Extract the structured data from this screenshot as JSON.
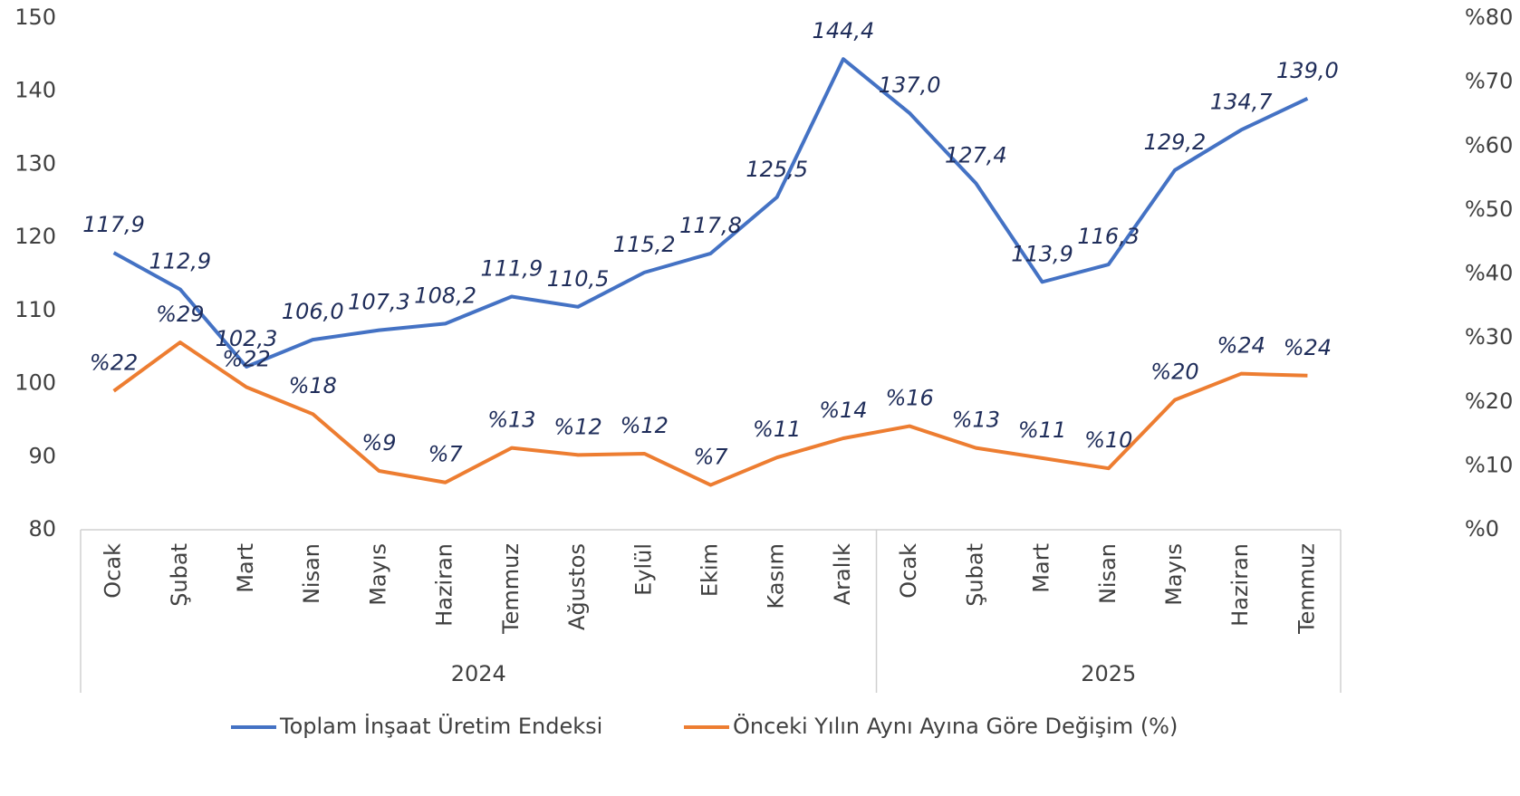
{
  "chart_data": {
    "type": "line",
    "categories": [
      "Ocak",
      "Şubat",
      "Mart",
      "Nisan",
      "Mayıs",
      "Haziran",
      "Temmuz",
      "Ağustos",
      "Eylül",
      "Ekim",
      "Kasım",
      "Aralık",
      "Ocak",
      "Şubat",
      "Mart",
      "Nisan",
      "Mayıs",
      "Haziran",
      "Temmuz"
    ],
    "groups": [
      {
        "label": "2024",
        "span": 12
      },
      {
        "label": "2025",
        "span": 7
      }
    ],
    "series": [
      {
        "name": "Toplam İnşaat Üretim Endeksi",
        "color": "#4472c4",
        "axis": "y",
        "values": [
          117.9,
          112.9,
          102.3,
          106.0,
          107.3,
          108.2,
          111.9,
          110.5,
          115.2,
          117.8,
          125.5,
          144.4,
          137.0,
          127.4,
          113.9,
          116.3,
          129.2,
          134.7,
          139.0
        ],
        "value_labels": [
          "117,9",
          "112,9",
          "102,3",
          "106,0",
          "107,3",
          "108,2",
          "111,9",
          "110,5",
          "115,2",
          "117,8",
          "125,5",
          "144,4",
          "137,0",
          "127,4",
          "113,9",
          "116,3",
          "129,2",
          "134,7",
          "139,0"
        ]
      },
      {
        "name": "Önceki Yılın Aynı Ayına Göre Değişim (%)",
        "color": "#ed7d31",
        "axis": "y2",
        "values": [
          21.7,
          29.3,
          22.3,
          18.1,
          9.2,
          7.4,
          12.8,
          11.7,
          11.9,
          7.0,
          11.3,
          14.3,
          16.2,
          12.8,
          11.2,
          9.6,
          20.3,
          24.4,
          24.1
        ],
        "value_labels": [
          "%22",
          "%29",
          "%22",
          "%18",
          "%9",
          "%7",
          "%13",
          "%12",
          "%12",
          "%7",
          "%11",
          "%14",
          "%16",
          "%13",
          "%11",
          "%10",
          "%20",
          "%24",
          "%24"
        ]
      }
    ],
    "ylim": [
      80,
      150
    ],
    "yticks": [
      80,
      90,
      100,
      110,
      120,
      130,
      140,
      150
    ],
    "y2lim": [
      0,
      80
    ],
    "y2ticks": [
      {
        "value": 0,
        "label": "%0"
      },
      {
        "value": 10,
        "label": "%10"
      },
      {
        "value": 20,
        "label": "%20"
      },
      {
        "value": 30,
        "label": "%30"
      },
      {
        "value": 40,
        "label": "%40"
      },
      {
        "value": 50,
        "label": "%50"
      },
      {
        "value": 60,
        "label": "%60"
      },
      {
        "value": 70,
        "label": "%70"
      },
      {
        "value": 80,
        "label": "%80"
      }
    ],
    "grid": false,
    "legend": "bottom"
  }
}
